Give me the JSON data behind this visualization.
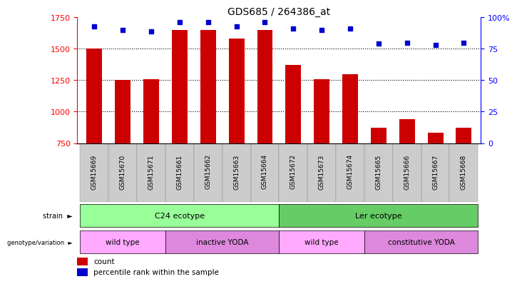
{
  "title": "GDS685 / 264386_at",
  "samples": [
    "GSM15669",
    "GSM15670",
    "GSM15671",
    "GSM15661",
    "GSM15662",
    "GSM15663",
    "GSM15664",
    "GSM15672",
    "GSM15673",
    "GSM15674",
    "GSM15665",
    "GSM15666",
    "GSM15667",
    "GSM15668"
  ],
  "counts": [
    1500,
    1250,
    1260,
    1650,
    1650,
    1580,
    1650,
    1370,
    1260,
    1300,
    870,
    940,
    830,
    870
  ],
  "percentiles": [
    93,
    90,
    89,
    96,
    96,
    93,
    96,
    91,
    90,
    91,
    79,
    80,
    78,
    80
  ],
  "y_min": 750,
  "y_max": 1750,
  "y_ticks": [
    750,
    1000,
    1250,
    1500,
    1750
  ],
  "y2_ticks": [
    0,
    25,
    50,
    75,
    100
  ],
  "bar_color": "#cc0000",
  "dot_color": "#0000cc",
  "strain_groups": [
    {
      "label": "C24 ecotype",
      "start": 0,
      "end": 7,
      "color": "#99ff99"
    },
    {
      "label": "Ler ecotype",
      "start": 7,
      "end": 14,
      "color": "#66cc66"
    }
  ],
  "genotype_groups": [
    {
      "label": "wild type",
      "start": 0,
      "end": 3,
      "color": "#ffaaff"
    },
    {
      "label": "inactive YODA",
      "start": 3,
      "end": 7,
      "color": "#dd88dd"
    },
    {
      "label": "wild type",
      "start": 7,
      "end": 10,
      "color": "#ffaaff"
    },
    {
      "label": "constitutive YODA",
      "start": 10,
      "end": 14,
      "color": "#dd88dd"
    }
  ],
  "legend_count_color": "#cc0000",
  "legend_dot_color": "#0000cc",
  "label_bg_color": "#cccccc",
  "fig_width": 6.58,
  "fig_height": 3.75
}
